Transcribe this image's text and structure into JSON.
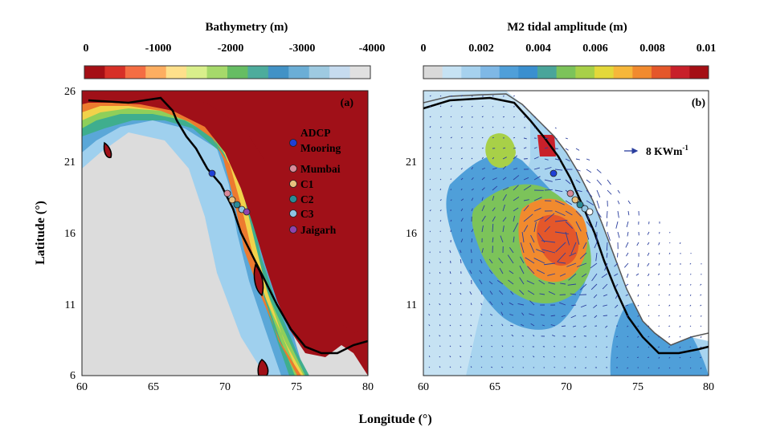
{
  "figure": {
    "y_label": "Latitude (°)",
    "x_label": "Longitude (°)",
    "x_ticks": [
      "60",
      "65",
      "70",
      "75",
      "80"
    ],
    "y_ticks": [
      "26",
      "21",
      "16",
      "11",
      "6"
    ]
  },
  "panel_a": {
    "label": "(a)",
    "colorbar_title": "Bathymetry (m)",
    "colorbar_ticks": [
      "0",
      "-1000",
      "-2000",
      "-3000",
      "-4000"
    ],
    "colorbar_colors": [
      "#a50f15",
      "#d73027",
      "#f46d43",
      "#fdae61",
      "#fee08b",
      "#d9ef8b",
      "#a6d96a",
      "#66bd63",
      "#4dac9c",
      "#4292c6",
      "#6baed6",
      "#9ecae1",
      "#c6dbef",
      "#e0e0e0"
    ],
    "legend": [
      {
        "label": "ADCP Mooring",
        "color": "#1f3fd6"
      },
      {
        "label": "Mumbai",
        "color": "#d98a9a"
      },
      {
        "label": "C1",
        "color": "#e8c07d"
      },
      {
        "label": "C2",
        "color": "#2a8a96"
      },
      {
        "label": "C3",
        "color": "#8fc4e3"
      },
      {
        "label": "Jaigarh",
        "color": "#8e44ad"
      }
    ]
  },
  "panel_b": {
    "label": "(b)",
    "colorbar_title": "M2 tidal amplitude (m)",
    "colorbar_ticks": [
      "0",
      "0.002",
      "0.004",
      "0.006",
      "0.008",
      "0.01"
    ],
    "colorbar_colors": [
      "#d9d9d9",
      "#c6e2f3",
      "#a6d1ee",
      "#7fb8e6",
      "#4f9fd9",
      "#3a8fcf",
      "#4aa59a",
      "#7cc35a",
      "#a8d048",
      "#e3d83a",
      "#f6b73a",
      "#f18a2e",
      "#e4572a",
      "#c8202a",
      "#a50f15"
    ],
    "arrow_legend": "8 KWm",
    "arrow_legend_sup": "-1"
  }
}
